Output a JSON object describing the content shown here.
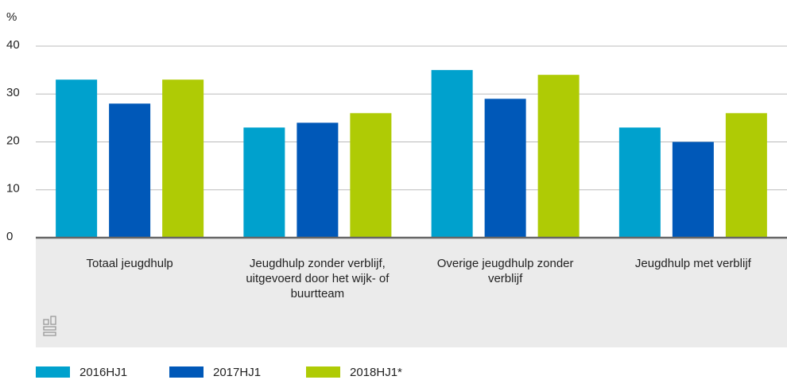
{
  "chart_data": {
    "type": "bar",
    "y_label": "%",
    "categories": [
      "Totaal jeugdhulp",
      "Jeugdhulp zonder verblijf, uitgevoerd door het wijk- of buurtteam",
      "Overige jeugdhulp zonder verblijf",
      "Jeugdhulp met verblijf"
    ],
    "series": [
      {
        "name": "2016HJ1",
        "color": "#00a1cd",
        "values": [
          33,
          23,
          35,
          23
        ]
      },
      {
        "name": "2017HJ1",
        "color": "#0058b8",
        "values": [
          28,
          24,
          29,
          20
        ]
      },
      {
        "name": "2018HJ1*",
        "color": "#afcb05",
        "values": [
          33,
          26,
          34,
          26
        ]
      }
    ],
    "ylim": [
      0,
      40
    ],
    "yticks": [
      0,
      10,
      20,
      30,
      40
    ],
    "grid": true
  }
}
